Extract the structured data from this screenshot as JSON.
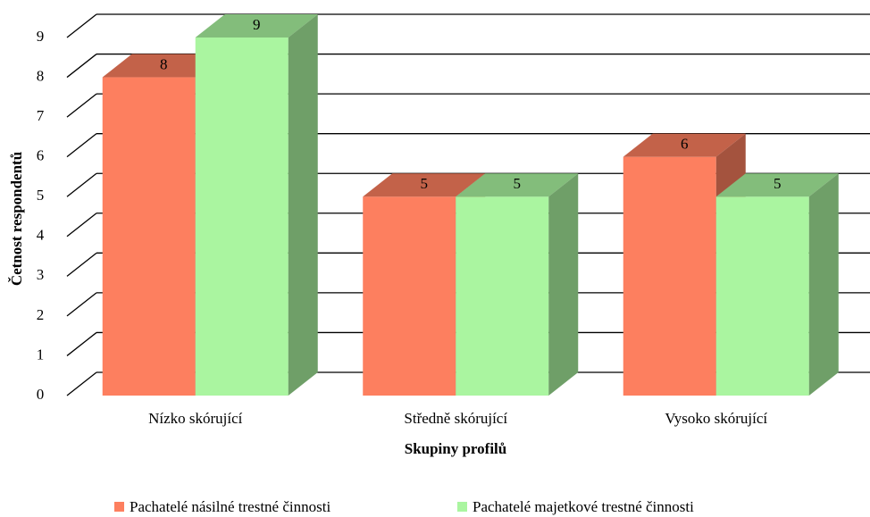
{
  "chart_data": {
    "type": "bar3d",
    "y_label": "Četnost respondentů",
    "x_label": "Skupiny profilů",
    "categories": [
      "Nízko skórující",
      "Středně skórující",
      "Vysoko skórující"
    ],
    "series": [
      {
        "name": "Pachatelé násilné trestné činnosti",
        "color": "#fd7f5f",
        "values": [
          8,
          5,
          6
        ]
      },
      {
        "name": "Pachatelé majetkové trestné činnosti",
        "color": "#aaf5a0",
        "values": [
          9,
          5,
          5
        ]
      }
    ],
    "ylim": [
      0,
      9
    ],
    "yticks": [
      0,
      1,
      2,
      3,
      4,
      5,
      6,
      7,
      8,
      9
    ],
    "grid": true,
    "legend": "bottom"
  }
}
